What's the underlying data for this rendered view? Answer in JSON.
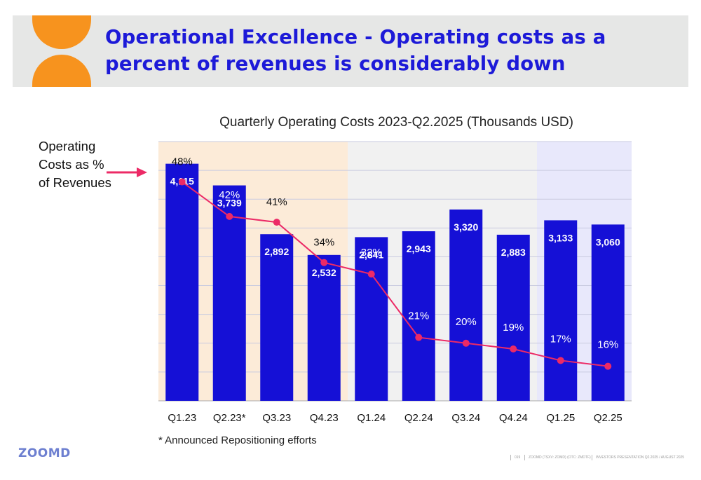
{
  "header": {
    "title": "Operational Excellence - Operating costs as a percent of revenues is considerably down",
    "bg_color": "#e6e7e6",
    "title_color": "#1d1ad8",
    "logo_color": "#f7931e"
  },
  "side_label": {
    "text": "Operating Costs as % of Revenues",
    "arrow_color": "#ec2a66"
  },
  "footnote": "* Announced Repositioning efforts",
  "footer": {
    "brand": "ZOOMD",
    "page_number": "019",
    "ticker": "ZOOMD (TSXV: ZOMD) (OTC: ZMDTF)",
    "presentation": "INVESTORS PRESENTATION Q2.2025 / AUGUST 2025"
  },
  "chart_data": {
    "type": "bar",
    "title": "Quarterly Operating Costs 2023-Q2.2025 (Thousands USD)",
    "categories": [
      "Q1.23",
      "Q2.23*",
      "Q3.23",
      "Q4.23",
      "Q1.24",
      "Q2.24",
      "Q3.24",
      "Q4.24",
      "Q1.25",
      "Q2.25"
    ],
    "series": [
      {
        "type": "bar",
        "values": [
          4115,
          3739,
          2892,
          2532,
          2841,
          2943,
          3320,
          2883,
          3133,
          3060
        ],
        "labels": [
          "4,115",
          "3,739",
          "2,892",
          "2,532",
          "2,841",
          "2,943",
          "3,320",
          "2,883",
          "3,133",
          "3,060"
        ],
        "color": "#1510d6"
      },
      {
        "type": "line",
        "values": [
          48,
          42,
          41,
          34,
          32,
          21,
          20,
          19,
          17,
          16
        ],
        "labels": [
          "48%",
          "42%",
          "41%",
          "34%",
          "32%",
          "21%",
          "20%",
          "19%",
          "17%",
          "16%"
        ],
        "color": "#ec2a66"
      }
    ],
    "bar_ylim": [
      0,
      4500
    ],
    "line_ylim": [
      10,
      55
    ],
    "grid": true,
    "shaded_periods": [
      {
        "from": "Q1.23",
        "to": "Q4.23",
        "color": "#fcebd8"
      },
      {
        "from": "Q1.24",
        "to": "Q4.24",
        "color": "#f1f1f1"
      },
      {
        "from": "Q1.25",
        "to": "Q2.25",
        "color": "#e8e8fb"
      }
    ]
  }
}
